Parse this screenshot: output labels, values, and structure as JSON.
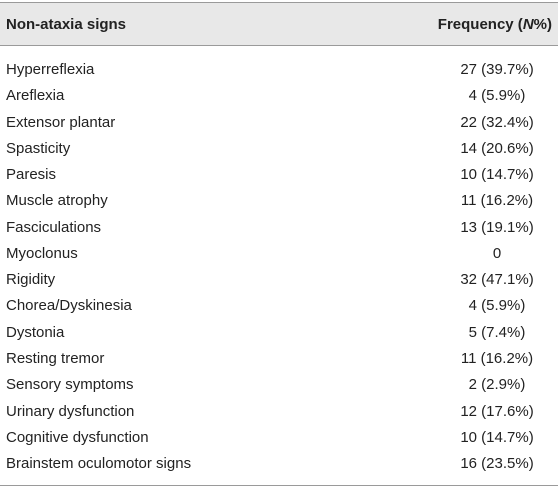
{
  "table": {
    "header": {
      "sign": "Non-ataxia signs",
      "frequency": {
        "before": "Frequency (",
        "italic": "N",
        "after": "%)"
      }
    },
    "rows": [
      [
        "Hyperreflexia",
        "27 (39.7%)"
      ],
      [
        "Areflexia",
        "4 (5.9%)"
      ],
      [
        "Extensor plantar",
        "22 (32.4%)"
      ],
      [
        "Spasticity",
        "14 (20.6%)"
      ],
      [
        "Paresis",
        "10 (14.7%)"
      ],
      [
        "Muscle atrophy",
        "11 (16.2%)"
      ],
      [
        "Fasciculations",
        "13 (19.1%)"
      ],
      [
        "Myoclonus",
        "0"
      ],
      [
        "Rigidity",
        "32 (47.1%)"
      ],
      [
        "Chorea/Dyskinesia",
        "4 (5.9%)"
      ],
      [
        "Dystonia",
        "5 (7.4%)"
      ],
      [
        "Resting tremor",
        "11 (16.2%)"
      ],
      [
        "Sensory symptoms",
        "2 (2.9%)"
      ],
      [
        "Urinary dysfunction",
        "12 (17.6%)"
      ],
      [
        "Cognitive dysfunction",
        "10 (14.7%)"
      ],
      [
        "Brainstem oculomotor signs",
        "16 (23.5%)"
      ]
    ]
  }
}
